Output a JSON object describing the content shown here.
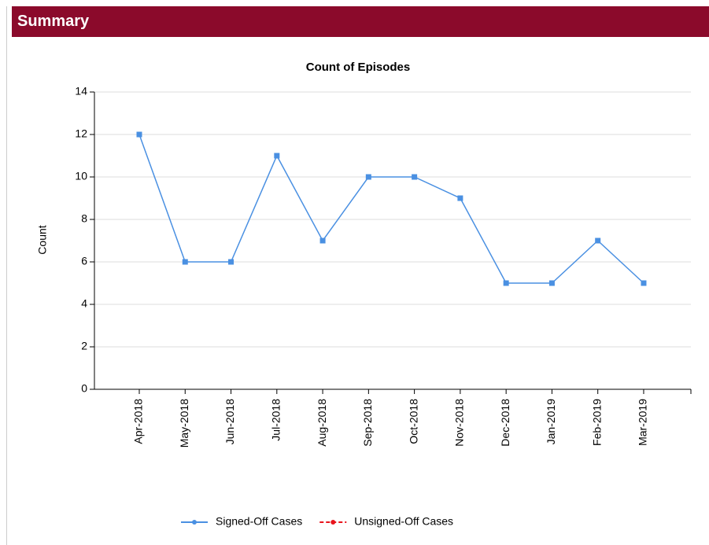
{
  "header": {
    "title": "Summary"
  },
  "chart_data": {
    "type": "line",
    "title": "Count of Episodes",
    "y_label": "Count",
    "categories": [
      "Apr-2018",
      "May-2018",
      "Jun-2018",
      "Jul-2018",
      "Aug-2018",
      "Sep-2018",
      "Oct-2018",
      "Nov-2018",
      "Dec-2018",
      "Jan-2019",
      "Feb-2019",
      "Mar-2019"
    ],
    "series": [
      {
        "name": "Signed-Off Cases",
        "color": "#4a90e2",
        "line_style": "solid",
        "values": [
          12,
          6,
          6,
          11,
          7,
          10,
          10,
          9,
          5,
          5,
          7,
          5
        ]
      },
      {
        "name": "Unsigned-Off Cases",
        "color": "#e8141c",
        "line_style": "dashed",
        "values": [
          null,
          null,
          null,
          null,
          null,
          null,
          null,
          null,
          null,
          null,
          null,
          null
        ]
      }
    ],
    "ylim": [
      0,
      14
    ],
    "yticks": [
      0,
      2,
      4,
      6,
      8,
      10,
      12,
      14
    ],
    "grid": true,
    "legend": "bottom"
  }
}
